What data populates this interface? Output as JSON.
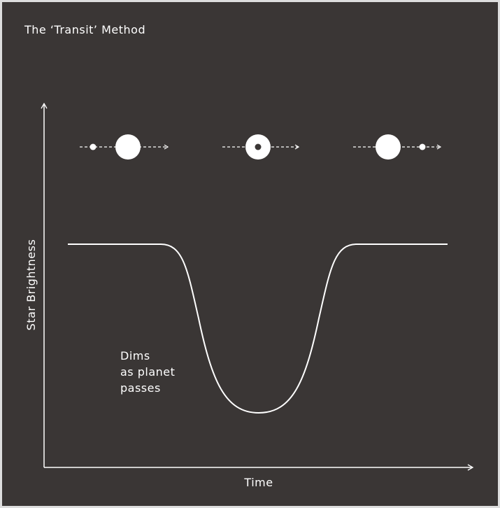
{
  "title": "The ‘Transit’ Method",
  "y_axis_label": "Star Brightness",
  "x_axis_label": "Time",
  "annotation": [
    "Dims",
    "as planet",
    "passes"
  ]
}
